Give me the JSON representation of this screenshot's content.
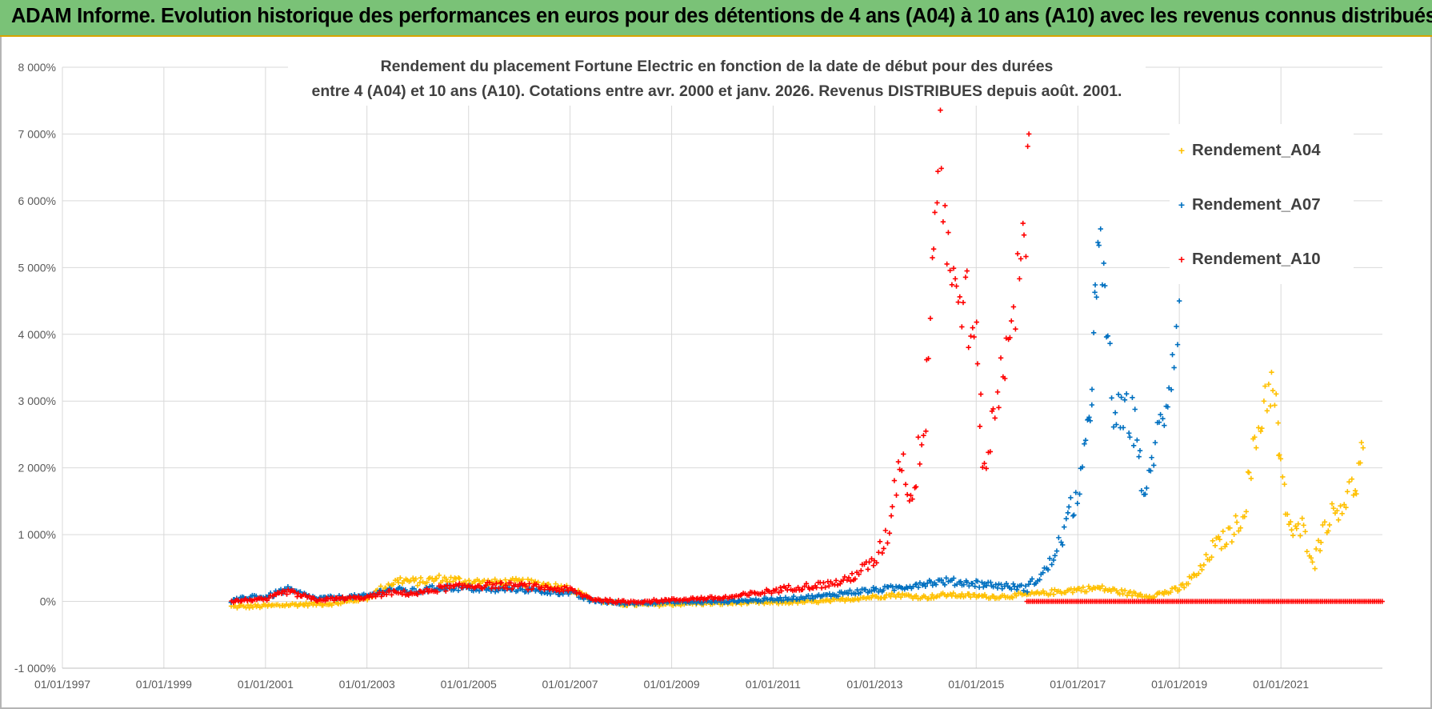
{
  "banner": {
    "title": "ADAM Informe. Evolution historique des performances en euros pour des détentions de 4 ans (A04) à 10 ans (A10) avec les revenus connus distribués"
  },
  "colors": {
    "banner_bg": "#7ac277",
    "banner_border": "#d9a300",
    "A04": "#ffc000",
    "A07": "#0070c0",
    "A10": "#ff0000",
    "grid": "#d9d9d9",
    "axis_text": "#595959"
  },
  "chart_data": {
    "type": "scatter",
    "title_line1": "Rendement du placement Fortune Electric  en fonction de la date de début pour des durées",
    "title_line2": "entre 4 (A04) et 10 ans (A10). Cotations entre avr. 2000 et janv. 2026. Revenus DISTRIBUES depuis août. 2001.",
    "xlabel": "",
    "ylabel": "",
    "x_range": [
      "1997-01-01",
      "2022-12-31"
    ],
    "y_range": [
      -1000,
      8000
    ],
    "x_ticks": [
      "01/01/1997",
      "01/01/1999",
      "01/01/2001",
      "01/01/2003",
      "01/01/2005",
      "01/01/2007",
      "01/01/2009",
      "01/01/2011",
      "01/01/2013",
      "01/01/2015",
      "01/01/2017",
      "01/01/2019",
      "01/01/2021"
    ],
    "y_ticks": [
      {
        "value": -1000,
        "label": "-1 000%"
      },
      {
        "value": 0,
        "label": "0%"
      },
      {
        "value": 1000,
        "label": "1 000%"
      },
      {
        "value": 2000,
        "label": "2 000%"
      },
      {
        "value": 3000,
        "label": "3 000%"
      },
      {
        "value": 4000,
        "label": "4 000%"
      },
      {
        "value": 5000,
        "label": "5 000%"
      },
      {
        "value": 6000,
        "label": "6 000%"
      },
      {
        "value": 7000,
        "label": "7 000%"
      },
      {
        "value": 8000,
        "label": "8 000%"
      }
    ],
    "grid": true,
    "legend_position": "top-right",
    "marker": "+",
    "series": [
      {
        "name": "Rendement_A04",
        "color": "#ffc000",
        "points": [
          [
            "2000-05-01",
            -80
          ],
          [
            "2001-01-01",
            -70
          ],
          [
            "2001-07-01",
            -50
          ],
          [
            "2002-01-01",
            -40
          ],
          [
            "2002-06-01",
            -30
          ],
          [
            "2003-01-01",
            50
          ],
          [
            "2003-06-01",
            250
          ],
          [
            "2003-09-01",
            320
          ],
          [
            "2004-01-01",
            290
          ],
          [
            "2004-06-01",
            340
          ],
          [
            "2005-01-01",
            300
          ],
          [
            "2005-06-01",
            280
          ],
          [
            "2006-01-01",
            290
          ],
          [
            "2006-06-01",
            260
          ],
          [
            "2007-01-01",
            200
          ],
          [
            "2007-06-01",
            30
          ],
          [
            "2008-01-01",
            -40
          ],
          [
            "2008-06-01",
            -50
          ],
          [
            "2009-01-01",
            -40
          ],
          [
            "2009-06-01",
            -30
          ],
          [
            "2010-01-01",
            -30
          ],
          [
            "2010-06-01",
            -20
          ],
          [
            "2011-01-01",
            -20
          ],
          [
            "2011-06-01",
            -10
          ],
          [
            "2012-01-01",
            0
          ],
          [
            "2012-06-01",
            30
          ],
          [
            "2013-01-01",
            70
          ],
          [
            "2013-06-01",
            100
          ],
          [
            "2014-01-01",
            60
          ],
          [
            "2014-06-01",
            100
          ],
          [
            "2015-01-01",
            80
          ],
          [
            "2015-06-01",
            70
          ],
          [
            "2016-01-01",
            100
          ],
          [
            "2016-06-01",
            130
          ],
          [
            "2017-01-01",
            180
          ],
          [
            "2017-06-01",
            200
          ],
          [
            "2018-01-01",
            120
          ],
          [
            "2018-06-01",
            80
          ],
          [
            "2019-01-01",
            180
          ],
          [
            "2019-06-01",
            450
          ],
          [
            "2019-09-01",
            800
          ],
          [
            "2020-01-01",
            1000
          ],
          [
            "2020-04-01",
            1300
          ],
          [
            "2020-06-01",
            2000
          ],
          [
            "2020-09-01",
            3000
          ],
          [
            "2020-10-15",
            3300
          ],
          [
            "2020-12-01",
            2800
          ],
          [
            "2021-01-01",
            1900
          ],
          [
            "2021-02-15",
            1300
          ],
          [
            "2021-04-01",
            1000
          ],
          [
            "2021-06-01",
            1100
          ],
          [
            "2021-09-01",
            600
          ],
          [
            "2021-11-01",
            1100
          ],
          [
            "2022-01-01",
            1300
          ],
          [
            "2022-04-01",
            1500
          ],
          [
            "2022-07-01",
            1800
          ],
          [
            "2022-08-15",
            2300
          ]
        ]
      },
      {
        "name": "Rendement_A07",
        "color": "#0070c0",
        "points": [
          [
            "2000-05-01",
            0
          ],
          [
            "2000-10-01",
            80
          ],
          [
            "2001-01-01",
            60
          ],
          [
            "2001-06-01",
            180
          ],
          [
            "2002-01-01",
            40
          ],
          [
            "2002-06-01",
            60
          ],
          [
            "2003-01-01",
            80
          ],
          [
            "2003-06-01",
            180
          ],
          [
            "2004-01-01",
            150
          ],
          [
            "2004-06-01",
            210
          ],
          [
            "2005-01-01",
            200
          ],
          [
            "2005-06-01",
            170
          ],
          [
            "2006-01-01",
            190
          ],
          [
            "2006-06-01",
            150
          ],
          [
            "2007-01-01",
            130
          ],
          [
            "2007-06-01",
            10
          ],
          [
            "2008-01-01",
            -30
          ],
          [
            "2008-06-01",
            -20
          ],
          [
            "2009-01-01",
            -10
          ],
          [
            "2009-06-01",
            -10
          ],
          [
            "2010-01-01",
            0
          ],
          [
            "2010-06-01",
            10
          ],
          [
            "2011-01-01",
            30
          ],
          [
            "2011-06-01",
            50
          ],
          [
            "2012-01-01",
            80
          ],
          [
            "2012-06-01",
            130
          ],
          [
            "2013-01-01",
            170
          ],
          [
            "2013-06-01",
            200
          ],
          [
            "2014-01-01",
            280
          ],
          [
            "2014-06-01",
            300
          ],
          [
            "2015-01-01",
            270
          ],
          [
            "2015-06-01",
            240
          ],
          [
            "2016-01-01",
            200
          ],
          [
            "2016-06-01",
            500
          ],
          [
            "2016-09-01",
            900
          ],
          [
            "2016-11-01",
            1300
          ],
          [
            "2017-01-01",
            1600
          ],
          [
            "2017-03-01",
            2200
          ],
          [
            "2017-04-01",
            3000
          ],
          [
            "2017-05-01",
            4200
          ],
          [
            "2017-06-01",
            5100
          ],
          [
            "2017-07-15",
            4700
          ],
          [
            "2017-09-01",
            3000
          ],
          [
            "2017-11-01",
            2700
          ],
          [
            "2018-01-01",
            2800
          ],
          [
            "2018-03-01",
            2600
          ],
          [
            "2018-05-01",
            1400
          ],
          [
            "2018-07-01",
            2300
          ],
          [
            "2018-09-01",
            2700
          ],
          [
            "2018-11-01",
            3500
          ],
          [
            "2019-01-01",
            4500
          ]
        ]
      },
      {
        "name": "Rendement_A10",
        "color": "#ff0000",
        "points": [
          [
            "2000-05-01",
            0
          ],
          [
            "2000-10-01",
            30
          ],
          [
            "2001-01-01",
            20
          ],
          [
            "2001-06-01",
            150
          ],
          [
            "2002-01-01",
            20
          ],
          [
            "2002-06-01",
            40
          ],
          [
            "2003-01-01",
            60
          ],
          [
            "2003-06-01",
            130
          ],
          [
            "2004-01-01",
            120
          ],
          [
            "2004-06-01",
            190
          ],
          [
            "2005-01-01",
            230
          ],
          [
            "2005-06-01",
            240
          ],
          [
            "2006-01-01",
            230
          ],
          [
            "2006-06-01",
            210
          ],
          [
            "2007-01-01",
            170
          ],
          [
            "2007-06-01",
            40
          ],
          [
            "2008-01-01",
            -10
          ],
          [
            "2008-06-01",
            0
          ],
          [
            "2009-01-01",
            20
          ],
          [
            "2009-06-01",
            40
          ],
          [
            "2010-01-01",
            50
          ],
          [
            "2010-06-01",
            90
          ],
          [
            "2011-01-01",
            160
          ],
          [
            "2011-06-01",
            210
          ],
          [
            "2012-01-01",
            250
          ],
          [
            "2012-06-01",
            300
          ],
          [
            "2013-01-01",
            600
          ],
          [
            "2013-04-01",
            1000
          ],
          [
            "2013-07-01",
            2200
          ],
          [
            "2013-10-01",
            1500
          ],
          [
            "2014-01-01",
            3000
          ],
          [
            "2014-03-01",
            5500
          ],
          [
            "2014-04-15",
            7000
          ],
          [
            "2014-06-01",
            5500
          ],
          [
            "2014-08-01",
            4500
          ],
          [
            "2014-10-01",
            4700
          ],
          [
            "2015-01-01",
            3700
          ],
          [
            "2015-03-01",
            2000
          ],
          [
            "2015-06-01",
            3000
          ],
          [
            "2015-09-01",
            4300
          ],
          [
            "2015-12-01",
            5000
          ],
          [
            "2016-01-15",
            7000
          ]
        ]
      }
    ],
    "zero_series_from": "2016-01-01"
  }
}
